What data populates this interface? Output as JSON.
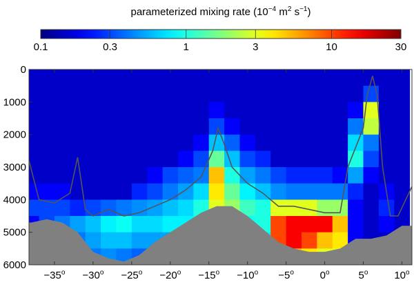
{
  "chart_data": {
    "type": "heatmap",
    "colorbar": {
      "label": "parameterized mixing rate (10",
      "label_exp1": "−4",
      "label_mid": " m",
      "label_exp2": "2",
      "label_mid2": " s",
      "label_exp3": "−1",
      "label_end": ")",
      "scale": "log",
      "range": [
        0.1,
        30
      ],
      "ticks": [
        "0.1",
        "0.3",
        "1",
        "3",
        "10",
        "30"
      ],
      "tick_values": [
        0.1,
        0.3,
        1,
        3,
        10,
        30
      ],
      "colormap": "jet",
      "placement": "top"
    },
    "x_ticks": [
      "-35",
      "-30",
      "-25",
      "-20",
      "-15",
      "-10",
      "-5",
      "0",
      "5",
      "10"
    ],
    "x_tick_values": [
      -35,
      -30,
      -25,
      -20,
      -15,
      -10,
      -5,
      0,
      5,
      10
    ],
    "x_tick_suffix": "o",
    "xlim": [
      -38.3,
      11.3
    ],
    "y_ticks": [
      "0",
      "1000",
      "2000",
      "3000",
      "4000",
      "5000",
      "6000"
    ],
    "y_tick_values": [
      0,
      1000,
      2000,
      3000,
      4000,
      5000,
      6000
    ],
    "ylim": [
      6000,
      0
    ],
    "y_reversed": true,
    "grid": false,
    "x": [
      -38,
      -36,
      -34,
      -32,
      -30,
      -28,
      -26,
      -24,
      -22,
      -20,
      -18,
      -16,
      -14,
      -12,
      -10,
      -8,
      -6,
      -4,
      -2,
      0,
      2,
      4,
      6,
      8,
      10
    ],
    "depth": [
      250,
      750,
      1250,
      1750,
      2250,
      2750,
      3250,
      3750,
      4250,
      4750,
      5250,
      5750
    ],
    "values": [
      [
        0.15,
        0.15,
        0.15,
        0.15,
        0.15,
        0.15,
        0.15,
        0.2,
        0.3,
        0.2,
        0.15,
        0.15
      ],
      [
        0.15,
        0.15,
        0.15,
        0.15,
        0.15,
        0.15,
        0.15,
        0.2,
        0.3,
        0.3,
        0.15,
        0.15
      ],
      [
        0.15,
        0.15,
        0.15,
        0.15,
        0.15,
        0.15,
        0.15,
        0.2,
        0.3,
        0.4,
        0.3,
        0.2
      ],
      [
        0.15,
        0.15,
        0.15,
        0.15,
        0.15,
        0.15,
        0.15,
        0.15,
        0.25,
        0.5,
        0.4,
        0.3
      ],
      [
        0.15,
        0.15,
        0.15,
        0.15,
        0.15,
        0.15,
        0.15,
        0.15,
        0.3,
        0.6,
        0.5,
        0.4
      ],
      [
        0.15,
        0.15,
        0.15,
        0.15,
        0.15,
        0.15,
        0.15,
        0.15,
        0.35,
        0.8,
        0.6,
        0.45
      ],
      [
        0.15,
        0.15,
        0.15,
        0.15,
        0.15,
        0.15,
        0.15,
        0.15,
        0.4,
        0.9,
        0.6,
        0.4
      ],
      [
        0.15,
        0.15,
        0.15,
        0.15,
        0.15,
        0.15,
        0.15,
        0.25,
        0.45,
        0.7,
        0.5,
        0.35
      ],
      [
        0.15,
        0.15,
        0.15,
        0.15,
        0.15,
        0.15,
        0.2,
        0.3,
        0.5,
        0.7,
        0.5,
        0.3
      ],
      [
        0.15,
        0.15,
        0.15,
        0.15,
        0.15,
        0.15,
        0.3,
        0.4,
        0.6,
        0.8,
        0.5,
        0.3
      ],
      [
        0.15,
        0.15,
        0.15,
        0.15,
        0.15,
        0.2,
        0.35,
        0.5,
        0.7,
        0.8,
        0.5,
        0.3
      ],
      [
        0.15,
        0.15,
        0.15,
        0.15,
        0.2,
        0.3,
        0.4,
        0.7,
        1,
        0.9,
        0.5,
        0.3
      ],
      [
        0.15,
        0.15,
        0.2,
        0.3,
        0.6,
        1.5,
        5,
        4,
        3,
        0.5,
        0.5,
        0.5
      ],
      [
        0.15,
        0.15,
        0.15,
        0.2,
        0.35,
        0.6,
        1,
        1.5,
        2,
        1,
        0.5,
        0.5
      ],
      [
        0.15,
        0.15,
        0.15,
        0.15,
        0.2,
        0.3,
        0.5,
        0.8,
        1.2,
        0.9,
        0.5,
        0.5
      ],
      [
        0.15,
        0.15,
        0.15,
        0.15,
        0.15,
        0.25,
        0.4,
        0.6,
        1,
        1,
        0.8,
        0.6
      ],
      [
        0.15,
        0.15,
        0.15,
        0.15,
        0.15,
        0.15,
        0.3,
        0.45,
        3,
        10,
        10,
        5
      ],
      [
        0.15,
        0.15,
        0.15,
        0.15,
        0.15,
        0.15,
        0.25,
        0.4,
        3,
        15,
        15,
        5
      ],
      [
        0.15,
        0.15,
        0.15,
        0.15,
        0.15,
        0.15,
        0.25,
        0.4,
        3,
        15,
        10,
        4
      ],
      [
        0.15,
        0.15,
        0.15,
        0.15,
        0.15,
        0.15,
        0.25,
        0.4,
        2,
        15,
        5,
        3
      ],
      [
        0.15,
        0.15,
        0.15,
        0.15,
        0.15,
        0.15,
        0.2,
        0.4,
        2,
        5,
        4,
        3
      ],
      [
        0.15,
        0.15,
        0.2,
        0.4,
        0.7,
        1,
        0.5,
        0.25,
        0.2,
        0.2,
        0.2,
        0.2
      ],
      [
        0.15,
        0.3,
        3,
        2.5,
        0.4,
        0.3,
        0.2,
        0.15,
        0.15,
        0.15,
        0.15,
        0.15
      ],
      [
        0.15,
        0.15,
        0.15,
        0.15,
        0.15,
        0.15,
        0.15,
        0.2,
        0.25,
        0.2,
        0.15,
        0.15
      ],
      [
        0.15,
        0.15,
        0.15,
        0.15,
        0.15,
        0.15,
        0.15,
        0.15,
        0.15,
        0.15,
        0.15,
        0.15
      ]
    ],
    "seafloor_depth": [
      4700,
      4600,
      4700,
      5000,
      5600,
      5800,
      5900,
      5700,
      5300,
      5000,
      4700,
      4400,
      4200,
      4200,
      4500,
      4900,
      5300,
      5500,
      5600,
      5600,
      5500,
      5200,
      5200,
      5100,
      4800
    ],
    "line": {
      "x": [
        -38.3,
        -37,
        -35,
        -33,
        -32,
        -31,
        -30,
        -28,
        -26,
        -24,
        -22,
        -20,
        -18,
        -16,
        -14.5,
        -13.8,
        -13,
        -12,
        -10,
        -8,
        -6,
        -4,
        -2,
        0,
        2,
        3,
        4,
        5,
        5.5,
        6.2,
        6.8,
        7.5,
        8.5,
        9.5,
        11.3
      ],
      "depth": [
        2800,
        4000,
        4100,
        3800,
        2700,
        4300,
        4500,
        4300,
        4500,
        4400,
        4200,
        4000,
        3700,
        3300,
        2500,
        1800,
        2300,
        3000,
        3500,
        3800,
        4200,
        4200,
        4300,
        4400,
        4400,
        3000,
        2400,
        1800,
        800,
        200,
        800,
        3000,
        4500,
        4500,
        3600
      ]
    },
    "colors": {
      "seafloor": "#808080",
      "line": "#555555"
    }
  }
}
